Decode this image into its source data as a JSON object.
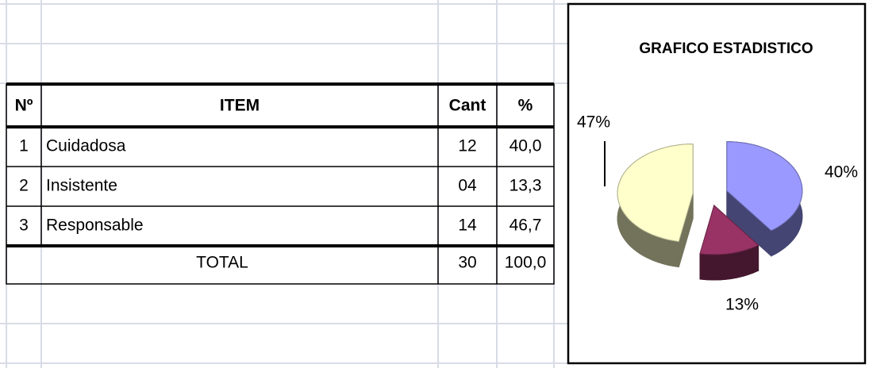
{
  "table": {
    "header": [
      "Nº",
      "ITEM",
      "Cant",
      "%"
    ],
    "rows": [
      [
        "1",
        "Cuidadosa",
        "12",
        "40,0"
      ],
      [
        "2",
        "Insistente",
        "04",
        "13,3"
      ],
      [
        "3",
        "Responsable",
        "14",
        "46,7"
      ]
    ],
    "total": {
      "label": "TOTAL",
      "cant": "30",
      "percent": "100,0"
    }
  },
  "chart_data": {
    "type": "pie",
    "title": "GRAFICO ESTADISTICO",
    "values": [
      40,
      13,
      47
    ],
    "value_labels": [
      "40%",
      "13%",
      "47%"
    ],
    "colors": [
      "#9999ff",
      "#993366",
      "#ffffcc"
    ]
  }
}
